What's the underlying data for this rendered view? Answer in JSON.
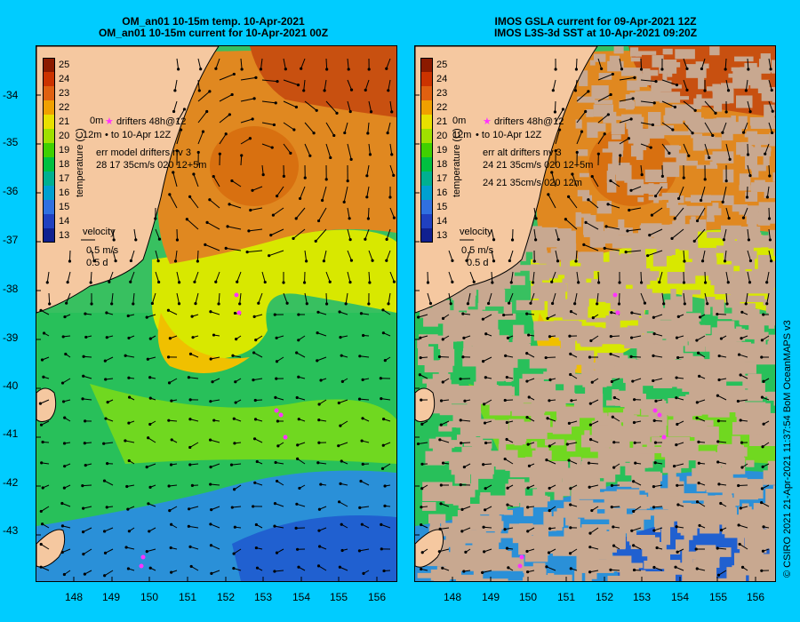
{
  "left_panel": {
    "title_line1": "OM_an01 10-15m temp. 10-Apr-2021",
    "title_line2": "OM_an01 10-15m current for 10-Apr-2021 00Z",
    "legend_drifters": "drifters 48h@12",
    "legend_to": "to 10-Apr 12Z",
    "legend_prefix1": "0m",
    "legend_prefix2": "12m",
    "err_line1": "err model drifters nv 3",
    "err_line2": "28 17 35cm/s 020 12+5m",
    "err_line3": "",
    "velocity_label": "velocity",
    "velocity_value": "0.5 m/s",
    "velocity_time": "0.5 d"
  },
  "right_panel": {
    "title_line1": "IMOS GSLA current for 09-Apr-2021 12Z",
    "title_line2": "IMOS L3S-3d SST at 10-Apr-2021 09:20Z",
    "legend_drifters": "drifters 48h@12",
    "legend_to": "to 10-Apr 12Z",
    "legend_prefix1": "0m",
    "legend_prefix2": "12m",
    "err_line1": "err alt drifters nv 3",
    "err_line2": "24 21 35cm/s 020 12+5m",
    "err_line3": "24 21 35cm/s 020 12m",
    "velocity_label": "velocity",
    "velocity_value": "0.5 m/s",
    "velocity_time": "0.5 d"
  },
  "colorbar": {
    "ticks": [
      "25",
      "24",
      "23",
      "22",
      "21",
      "20",
      "19",
      "18",
      "17",
      "16",
      "15",
      "14",
      "13"
    ],
    "label": "temperature (C)"
  },
  "y_ticks": [
    "-34",
    "-35",
    "-36",
    "-37",
    "-38",
    "-39",
    "-40",
    "-41",
    "-42",
    "-43"
  ],
  "x_ticks": [
    "148",
    "149",
    "150",
    "151",
    "152",
    "153",
    "154",
    "155",
    "156"
  ],
  "credit": "© CSIRO 2021   21-Apr-2021 11:37:54 BoM OceanMAPS v3",
  "colors": {
    "background": "#00ccff",
    "land": "#f5c8a0",
    "no_data": "#c8a890",
    "drifter": "#ff33ff"
  }
}
